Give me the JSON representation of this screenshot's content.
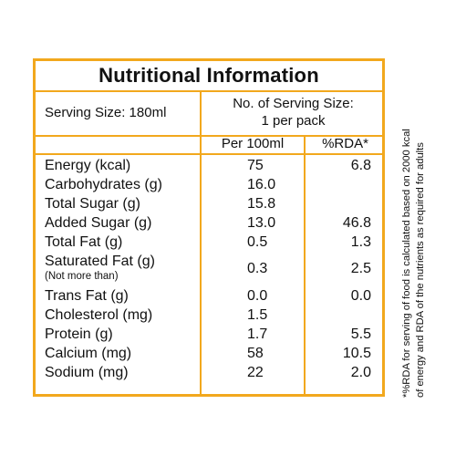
{
  "title": "Nutritional Information",
  "serving_size": "Serving Size: 180ml",
  "servings_line1": "No. of Serving Size:",
  "servings_line2": "1 per pack",
  "col_per100": "Per 100ml",
  "col_rda": "%RDA*",
  "rows": [
    {
      "name": "Energy (kcal)",
      "per100": "75",
      "rda": "6.8"
    },
    {
      "name": "Carbohydrates (g)",
      "per100": "16.0",
      "rda": ""
    },
    {
      "name": "Total Sugar (g)",
      "per100": "15.8",
      "rda": ""
    },
    {
      "name": "Added Sugar (g)",
      "per100": "13.0",
      "rda": "46.8"
    },
    {
      "name": "Total Fat (g)",
      "per100": "0.5",
      "rda": "1.3"
    },
    {
      "name": "Saturated Fat (g)",
      "sub": "(Not more than)",
      "per100": "0.3",
      "rda": "2.5"
    },
    {
      "name": "Trans Fat (g)",
      "per100": "0.0",
      "rda": "0.0"
    },
    {
      "name": "Cholesterol (mg)",
      "per100": "1.5",
      "rda": ""
    },
    {
      "name": "Protein (g)",
      "per100": "1.7",
      "rda": "5.5"
    },
    {
      "name": "Calcium (mg)",
      "per100": "58",
      "rda": "10.5"
    },
    {
      "name": "Sodium (mg)",
      "per100": "22",
      "rda": "2.0"
    }
  ],
  "footnote_line1": "*%RDA for serving of food is calculated based on 2000 kcal",
  "footnote_line2": "of energy and RDA of the nutrients as required for adults",
  "colors": {
    "border": "#F2A81D",
    "text": "#111111"
  }
}
